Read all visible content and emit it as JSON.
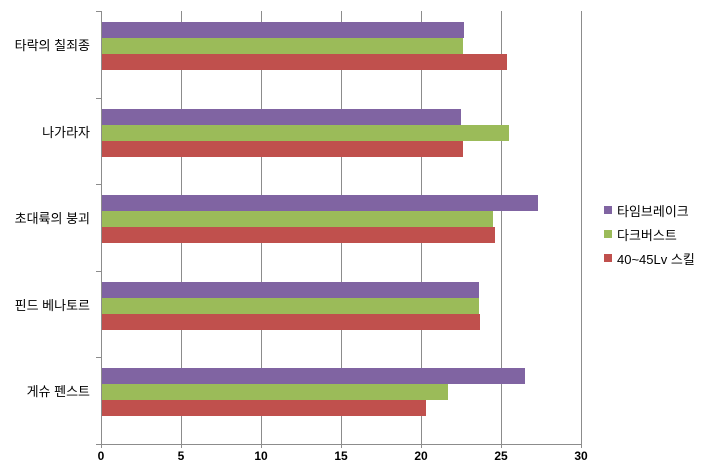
{
  "chart_data": {
    "type": "bar",
    "orientation": "horizontal",
    "title": "",
    "xlabel": "",
    "ylabel": "",
    "categories": [
      "타락의 칠죄종",
      "나가라자",
      "초대륙의 붕괴",
      "핀드 베나토르",
      "게슈 펜스트"
    ],
    "series": [
      {
        "name": "타임브레이크",
        "color": "#8064A2",
        "values": [
          22.7,
          22.5,
          27.3,
          23.6,
          26.5
        ]
      },
      {
        "name": "다크버스트",
        "color": "#9BBB59",
        "values": [
          22.6,
          25.5,
          24.5,
          23.6,
          21.7
        ]
      },
      {
        "name": "40~45Lv 스킬",
        "color": "#C0504D",
        "values": [
          25.4,
          22.6,
          24.6,
          23.7,
          20.3
        ]
      }
    ],
    "xlim": [
      0,
      30
    ],
    "xticks": [
      "0",
      "5",
      "10",
      "15",
      "20",
      "25",
      "30"
    ],
    "grid": "vertical",
    "legend_position": "right"
  },
  "style": {
    "background": "#FFFFFF",
    "axis_color": "#8C8C8C",
    "gridline_color": "#8C8C8C",
    "text_color": "#000000"
  }
}
